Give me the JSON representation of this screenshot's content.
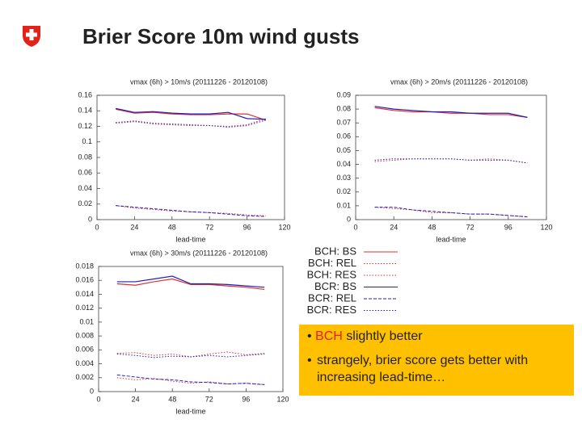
{
  "title": "Brier Score 10m wind gusts",
  "bullets": [
    {
      "highlight": "BCH",
      "text": "slightly better"
    },
    {
      "text": "strangely, brier score gets better with increasing lead-time…"
    }
  ],
  "chart_data": [
    {
      "type": "line",
      "title": "vmax (6h) > 10m/s (20111226 - 20120108)",
      "xlabel": "lead-time",
      "x": [
        12,
        24,
        36,
        48,
        60,
        72,
        84,
        96,
        108
      ],
      "xlim": [
        0,
        120
      ],
      "xticks": [
        0,
        24,
        48,
        72,
        96,
        120
      ],
      "ylim": [
        0,
        0.16
      ],
      "yticks": [
        0,
        0.02,
        0.04,
        0.06,
        0.08,
        0.1,
        0.12,
        0.14,
        0.16
      ],
      "series": [
        {
          "name": "BCH: BS",
          "color": "#e03030",
          "style": "solid",
          "values": [
            0.142,
            0.137,
            0.138,
            0.136,
            0.135,
            0.135,
            0.136,
            0.136,
            0.128
          ]
        },
        {
          "name": "BCH: REL",
          "color": "#e03030",
          "style": "dotted",
          "values": [
            0.018,
            0.015,
            0.013,
            0.011,
            0.01,
            0.009,
            0.008,
            0.006,
            0.005
          ]
        },
        {
          "name": "BCH: RES",
          "color": "#e03030",
          "style": "dotted",
          "values": [
            0.124,
            0.126,
            0.123,
            0.122,
            0.121,
            0.121,
            0.12,
            0.122,
            0.13
          ]
        },
        {
          "name": "BCR: BS",
          "color": "#2020c0",
          "style": "solid",
          "values": [
            0.143,
            0.138,
            0.139,
            0.137,
            0.136,
            0.136,
            0.138,
            0.13,
            0.129
          ]
        },
        {
          "name": "BCR: REL",
          "color": "#2020c0",
          "style": "dashed",
          "values": [
            0.018,
            0.016,
            0.014,
            0.012,
            0.01,
            0.009,
            0.007,
            0.005,
            0.004
          ]
        },
        {
          "name": "BCR: RES",
          "color": "#2020c0",
          "style": "dotted",
          "values": [
            0.125,
            0.127,
            0.124,
            0.123,
            0.122,
            0.121,
            0.119,
            0.121,
            0.128
          ]
        }
      ]
    },
    {
      "type": "line",
      "title": "vmax (6h) > 20m/s (20111226 - 20120108)",
      "xlabel": "lead-time",
      "x": [
        12,
        24,
        36,
        48,
        60,
        72,
        84,
        96,
        108
      ],
      "xlim": [
        0,
        120
      ],
      "xticks": [
        0,
        24,
        48,
        72,
        96,
        120
      ],
      "ylim": [
        0,
        0.09
      ],
      "yticks": [
        0,
        0.01,
        0.02,
        0.03,
        0.04,
        0.05,
        0.06,
        0.07,
        0.08,
        0.09
      ],
      "series": [
        {
          "color": "#e03030",
          "style": "solid",
          "values": [
            0.081,
            0.079,
            0.078,
            0.078,
            0.077,
            0.077,
            0.076,
            0.076,
            0.074
          ]
        },
        {
          "color": "#e03030",
          "style": "dotted",
          "values": [
            0.009,
            0.008,
            0.007,
            0.005,
            0.005,
            0.004,
            0.004,
            0.003,
            0.002
          ]
        },
        {
          "color": "#e03030",
          "style": "dotted",
          "values": [
            0.042,
            0.043,
            0.044,
            0.044,
            0.044,
            0.043,
            0.044,
            0.043,
            0.041
          ]
        },
        {
          "color": "#2020c0",
          "style": "solid",
          "values": [
            0.082,
            0.08,
            0.079,
            0.078,
            0.078,
            0.077,
            0.077,
            0.077,
            0.074
          ]
        },
        {
          "color": "#2020c0",
          "style": "dashed",
          "values": [
            0.009,
            0.009,
            0.007,
            0.006,
            0.005,
            0.004,
            0.004,
            0.003,
            0.002
          ]
        },
        {
          "color": "#2020c0",
          "style": "dotted",
          "values": [
            0.043,
            0.044,
            0.044,
            0.044,
            0.044,
            0.043,
            0.043,
            0.043,
            0.041
          ]
        }
      ]
    },
    {
      "type": "line",
      "title": "vmax (6h) > 30m/s (20111226 - 20120108)",
      "xlabel": "lead-time",
      "x": [
        12,
        24,
        36,
        48,
        60,
        72,
        84,
        96,
        108
      ],
      "xlim": [
        0,
        120
      ],
      "xticks": [
        0,
        24,
        48,
        72,
        96,
        120
      ],
      "ylim": [
        0,
        0.018
      ],
      "yticks": [
        0,
        0.002,
        0.004,
        0.006,
        0.008,
        0.01,
        0.012,
        0.014,
        0.016,
        0.018
      ],
      "series": [
        {
          "color": "#e03030",
          "style": "solid",
          "values": [
            0.0155,
            0.0153,
            0.0158,
            0.0162,
            0.0154,
            0.0154,
            0.0152,
            0.015,
            0.0147
          ]
        },
        {
          "color": "#e03030",
          "style": "dotted",
          "values": [
            0.002,
            0.0017,
            0.0019,
            0.0015,
            0.0012,
            0.0014,
            0.0011,
            0.0012,
            0.001
          ]
        },
        {
          "color": "#e03030",
          "style": "dotted",
          "values": [
            0.0055,
            0.0056,
            0.0052,
            0.0054,
            0.005,
            0.0054,
            0.0057,
            0.0053,
            0.0055
          ]
        },
        {
          "color": "#2020c0",
          "style": "solid",
          "values": [
            0.0158,
            0.0158,
            0.0162,
            0.0166,
            0.0155,
            0.0155,
            0.0154,
            0.0152,
            0.015
          ]
        },
        {
          "color": "#2020c0",
          "style": "dashed",
          "values": [
            0.0024,
            0.0021,
            0.0018,
            0.0017,
            0.0014,
            0.0013,
            0.0011,
            0.0012,
            0.001
          ]
        },
        {
          "color": "#2020c0",
          "style": "dotted",
          "values": [
            0.0054,
            0.0052,
            0.0049,
            0.0051,
            0.005,
            0.0052,
            0.005,
            0.0052,
            0.0054
          ]
        }
      ]
    }
  ]
}
